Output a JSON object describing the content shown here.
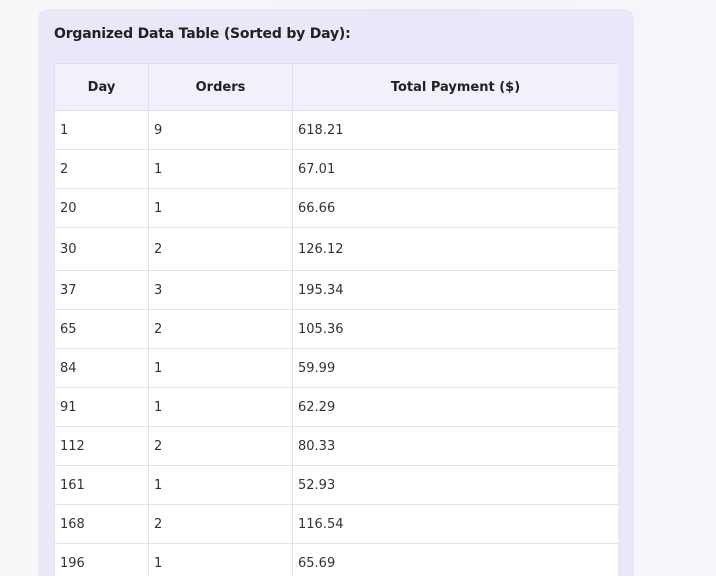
{
  "table": {
    "title": "Organized Data Table (Sorted by Day):",
    "headers": [
      "Day",
      "Orders",
      "Total Payment ($)"
    ],
    "rows": [
      {
        "day": "1",
        "orders": "9",
        "payment": "618.21"
      },
      {
        "day": "2",
        "orders": "1",
        "payment": "67.01"
      },
      {
        "day": "20",
        "orders": "1",
        "payment": "66.66"
      },
      {
        "day": "30",
        "orders": "2",
        "payment": "126.12"
      },
      {
        "day": "37",
        "orders": "3",
        "payment": "195.34"
      },
      {
        "day": "65",
        "orders": "2",
        "payment": "105.36"
      },
      {
        "day": "84",
        "orders": "1",
        "payment": "59.99"
      },
      {
        "day": "91",
        "orders": "1",
        "payment": "62.29"
      },
      {
        "day": "112",
        "orders": "2",
        "payment": "80.33"
      },
      {
        "day": "161",
        "orders": "1",
        "payment": "52.93"
      },
      {
        "day": "168",
        "orders": "2",
        "payment": "116.54"
      },
      {
        "day": "196",
        "orders": "1",
        "payment": "65.69"
      }
    ]
  }
}
